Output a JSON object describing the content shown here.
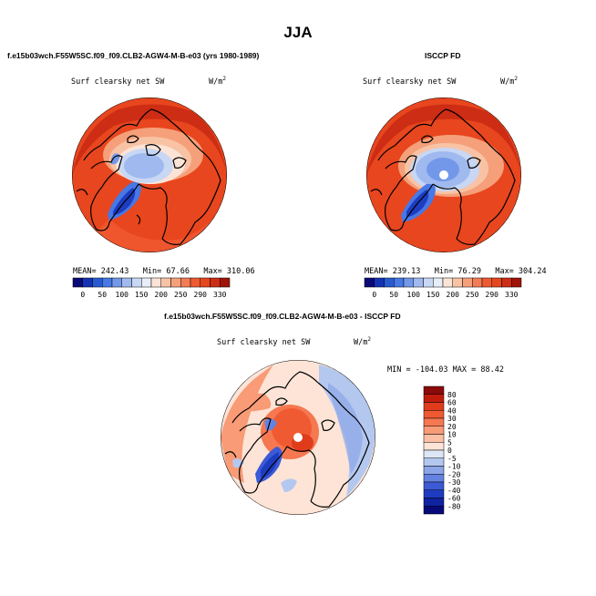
{
  "page_title": "JJA",
  "panels": [
    {
      "case_label": "f.e15b03wch.F55W5SC.f09_f09.CLB2-AGW4-M-B-e03 (yrs 1980-1989)",
      "variable": "Surf clearsky net SW",
      "units_base": "W/m",
      "units_exp": "2",
      "stats": {
        "mean": "MEAN= 242.43",
        "min": "Min=  67.66",
        "max": "Max= 310.06"
      }
    },
    {
      "case_label": "ISCCP FD",
      "variable": "Surf clearsky net SW",
      "units_base": "W/m",
      "units_exp": "2",
      "stats": {
        "mean": "MEAN= 239.13",
        "min": "Min=  76.29",
        "max": "Max= 304.24"
      }
    },
    {
      "case_label": "f.e15b03wch.F55W5SC.f09_f09.CLB2-AGW4-M-B-e03 - ISCCP FD",
      "variable": "Surf clearsky net SW",
      "units_base": "W/m",
      "units_exp": "2",
      "stats": {
        "minmax": "MIN = -104.03  MAX =  88.42"
      }
    }
  ],
  "colorbar_top": {
    "labels": [
      "0",
      "50",
      "100",
      "150",
      "200",
      "250",
      "290",
      "330"
    ],
    "colors": [
      "#0a0a78",
      "#1432b4",
      "#285ad2",
      "#4678e6",
      "#7398ea",
      "#a0b9ee",
      "#c8d7f3",
      "#e8eef8",
      "#fbe3d6",
      "#f8c3a5",
      "#f5a07a",
      "#f27c55",
      "#ee5a32",
      "#e6461e",
      "#cd2d14",
      "#a01408"
    ]
  },
  "colorbar_diff": {
    "labels": [
      "80",
      "60",
      "40",
      "30",
      "20",
      "10",
      "5",
      "0",
      "-5",
      "-10",
      "-20",
      "-30",
      "-40",
      "-60",
      "-80"
    ],
    "colors": [
      "#8b0a0a",
      "#c01c0c",
      "#e03c1c",
      "#f05a32",
      "#f57850",
      "#f89b76",
      "#fbbfa3",
      "#fde4d7",
      "#dce6f5",
      "#b4c8ef",
      "#8ca5e8",
      "#6482e0",
      "#3c5ad6",
      "#1e3cc0",
      "#0f23a0",
      "#050a78"
    ]
  }
}
